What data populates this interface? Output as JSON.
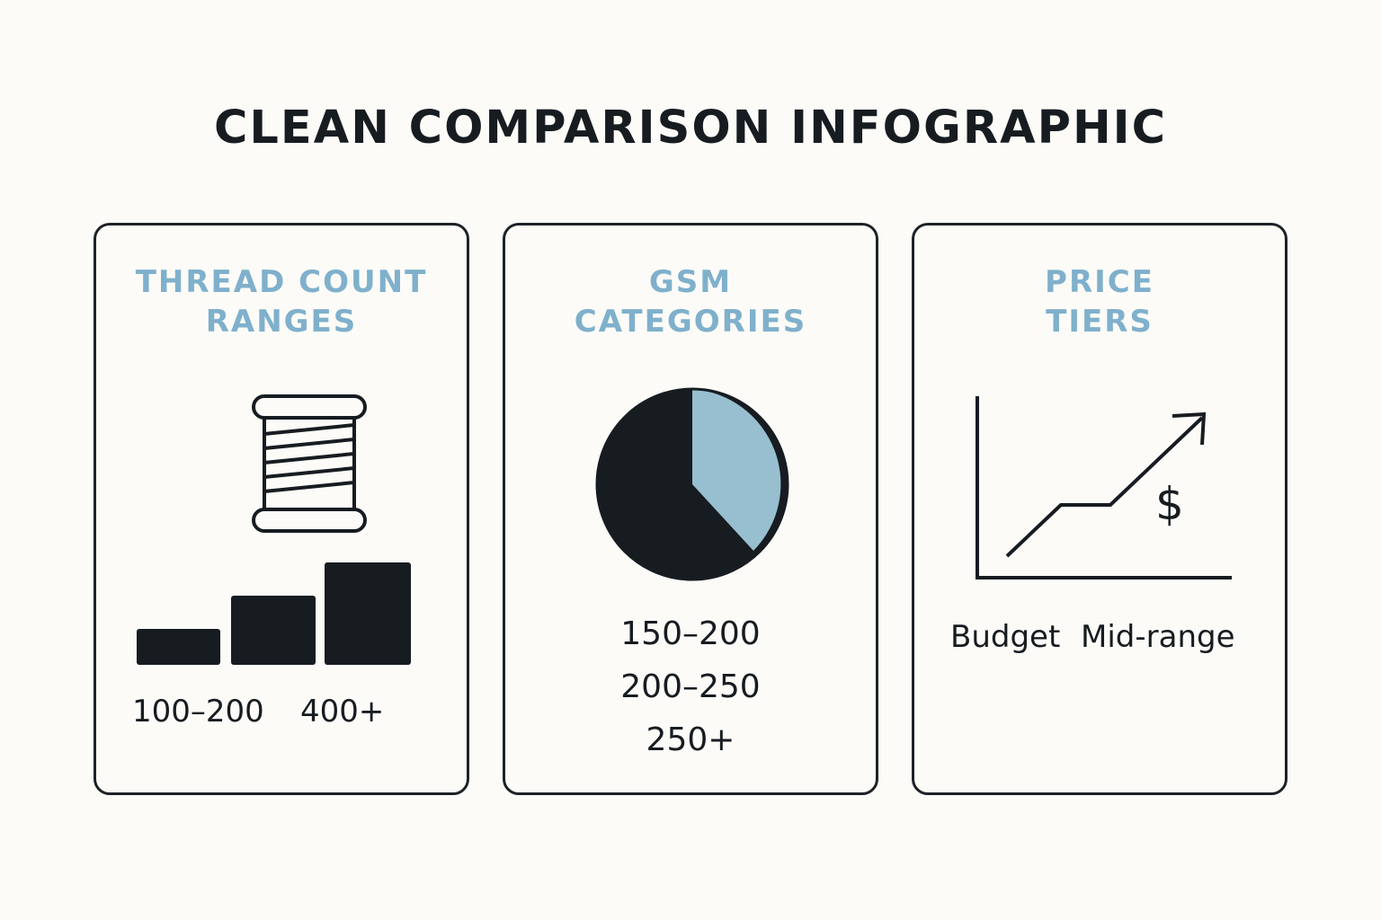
{
  "title": "CLEAN COMPARISON INFOGRAPHIC",
  "colors": {
    "dark": "#171c21",
    "accent": "#7fb0cc",
    "pie_light": "#97bfcf",
    "background": "#fcfbf7"
  },
  "cards": [
    {
      "heading_lines": [
        "THREAD COUNT",
        "RANGES"
      ],
      "icon": "thread-spool-icon",
      "graphic": "bar-steps",
      "labels": [
        "100–200",
        "400+"
      ]
    },
    {
      "heading_lines": [
        "GSM",
        "CATEGORIES"
      ],
      "icon": "pie-chart-icon",
      "graphic": "pie",
      "labels": [
        "150–200",
        "200–250",
        "250+"
      ]
    },
    {
      "heading_lines": [
        "PRICE",
        "TIERS"
      ],
      "icon": "rising-price-chart-icon",
      "graphic": "trend-line-with-dollar",
      "dollar_symbol": "$",
      "labels": [
        "Budget",
        "Mid-range"
      ]
    }
  ]
}
